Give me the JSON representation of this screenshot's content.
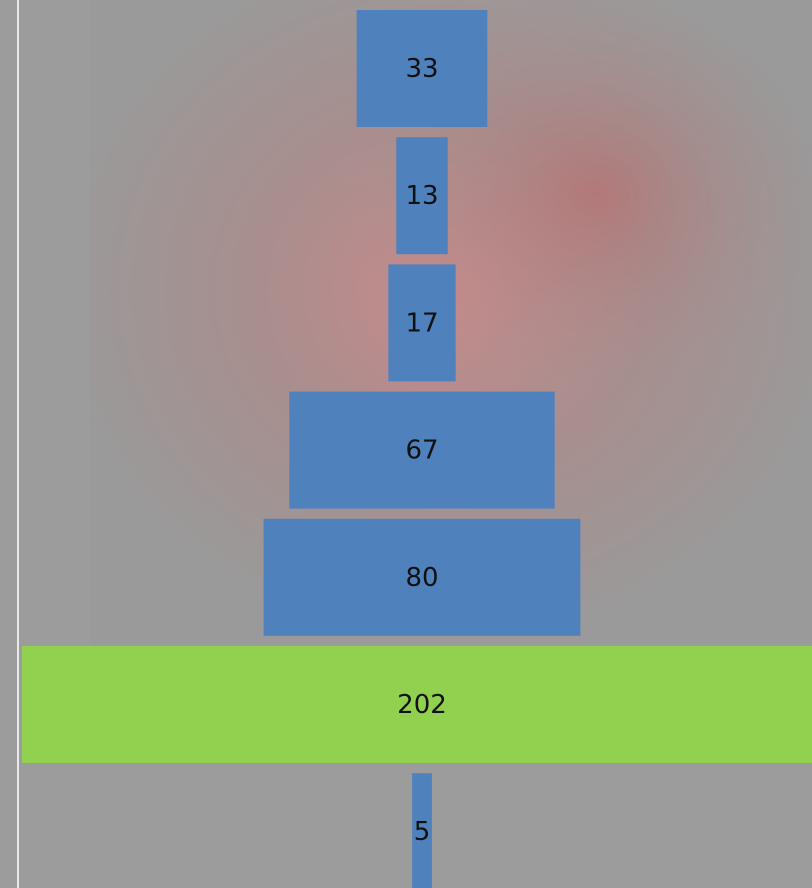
{
  "chart_data": {
    "type": "funnel",
    "values": [
      33,
      13,
      17,
      67,
      80,
      202,
      5
    ],
    "colors": [
      "#4f81bd",
      "#4f81bd",
      "#4f81bd",
      "#4f81bd",
      "#4f81bd",
      "#92d050",
      "#4f81bd"
    ]
  }
}
